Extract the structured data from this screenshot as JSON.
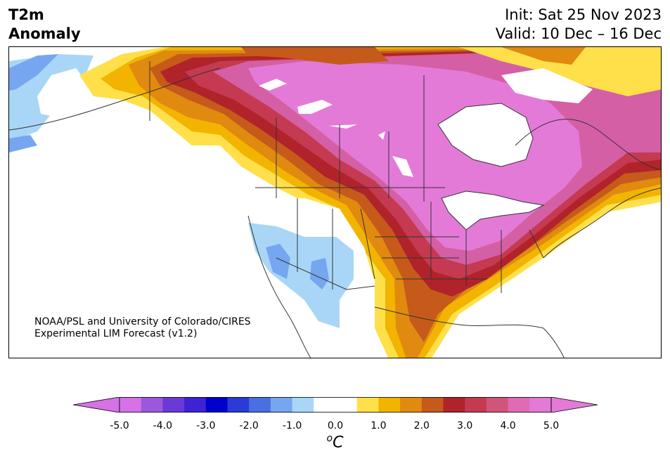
{
  "header": {
    "title_line1": "T2m",
    "title_line2": "Anomaly",
    "init": "Init: Sat 25 Nov 2023",
    "valid": "Valid: 10 Dec – 16 Dec"
  },
  "credit": {
    "line1": "NOAA/PSL and University of Colorado/CIRES",
    "line2": "Experimental LIM Forecast (v1.2)"
  },
  "colorbar": {
    "unit_base": "C",
    "unit_sup": "o",
    "tick_labels": [
      "-5.0",
      "-4.0",
      "-3.0",
      "-2.0",
      "-1.0",
      "0.0",
      "1.0",
      "2.0",
      "3.0",
      "4.0",
      "5.0"
    ],
    "colors": [
      "#d572e6",
      "#9c58dd",
      "#6a3ad8",
      "#3f22d4",
      "#0000cc",
      "#2a3bd8",
      "#4a6fe0",
      "#76a6ef",
      "#a9d6f7",
      "#ffffff",
      "#ffffff",
      "#ffe04a",
      "#f2b400",
      "#e08a10",
      "#c65a1a",
      "#b0232a",
      "#c53a50",
      "#d1547a",
      "#e06bb5",
      "#e47ad8"
    ],
    "under_color": "#d572e6",
    "over_color": "#e47ad8"
  },
  "map": {
    "colors": {
      "pink": "#e47ad8",
      "magenta": "#d45fa4",
      "rose": "#c53a50",
      "red": "#b0232a",
      "rust": "#c65a1a",
      "orange": "#e08a10",
      "gold": "#f2b400",
      "yellow": "#ffe04a",
      "lightblue": "#a9d6f7",
      "blue": "#76a6ef",
      "midblue": "#4a6fe0",
      "water": "#ffffff",
      "border": "#333333"
    }
  }
}
